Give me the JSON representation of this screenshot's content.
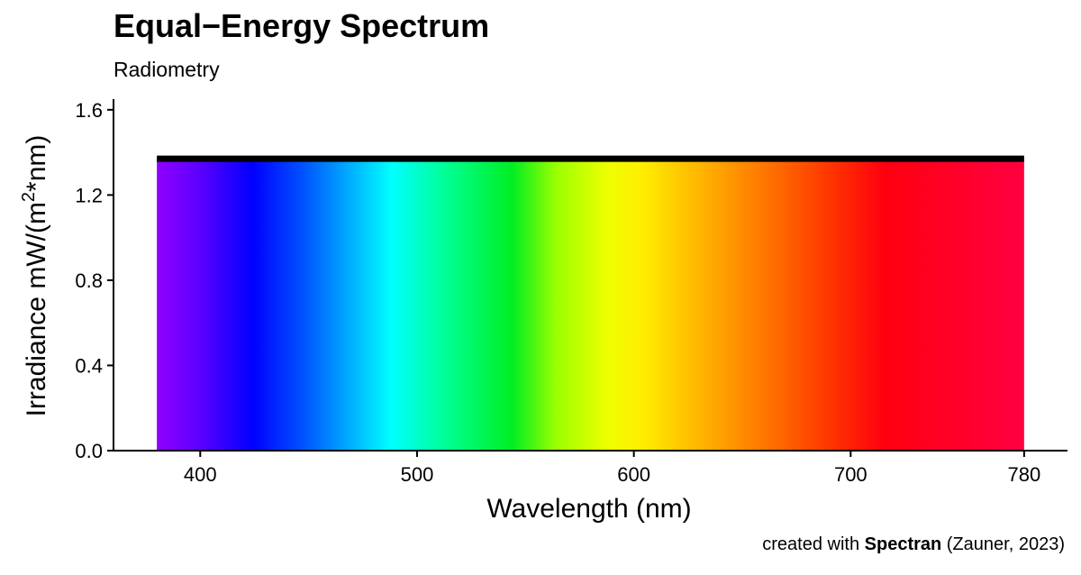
{
  "chart_data": {
    "type": "area",
    "title": "Equal−Energy Spectrum",
    "subtitle": "Radiometry",
    "xlabel": "Wavelength (nm)",
    "ylabel_main": "Irradiance  mW/(m",
    "ylabel_sup": "2",
    "ylabel_end": "*nm)",
    "xlim": [
      360,
      800
    ],
    "ylim": [
      0,
      1.65
    ],
    "x_ticks": [
      400,
      500,
      600,
      700,
      780
    ],
    "y_ticks": [
      0,
      0.4,
      0.8,
      1.2,
      1.6
    ],
    "y_tick_labels": [
      "0.0",
      "0.4",
      "0.8",
      "1.2",
      "1.6"
    ],
    "series": [
      {
        "x": [
          380,
          780
        ],
        "y": [
          1.37,
          1.37
        ]
      }
    ],
    "fill": "visible spectrum color gradient",
    "line_color": "#000000",
    "grid": false,
    "legend": "none"
  },
  "caption": {
    "prefix": "created with ",
    "bold": "Spectran",
    "suffix": " (Zauner, 2023)"
  }
}
